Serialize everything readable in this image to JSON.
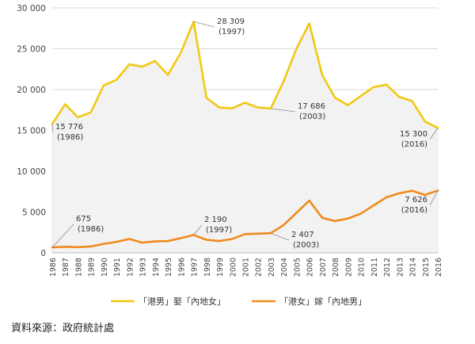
{
  "chart_data": {
    "type": "line",
    "x": [
      "1986",
      "1987",
      "1988",
      "1989",
      "1990",
      "1991",
      "1992",
      "1993",
      "1994",
      "1995",
      "1996",
      "1997",
      "1998",
      "1999",
      "2000",
      "2001",
      "2002",
      "2003",
      "2004",
      "2005",
      "2006",
      "2007",
      "2008",
      "2009",
      "2010",
      "2011",
      "2012",
      "2013",
      "2014",
      "2015",
      "2016"
    ],
    "ylim": [
      0,
      30000
    ],
    "yticks": [
      0,
      5000,
      10000,
      15000,
      20000,
      25000,
      30000
    ],
    "ytick_labels": [
      "0",
      "5 000",
      "10 000",
      "15 000",
      "20 000",
      "25 000",
      "30 000"
    ],
    "grid": true,
    "legend_position": "bottom",
    "series": [
      {
        "name": "「港男」娶「內地女」",
        "color": "#f2c811",
        "values": [
          15776,
          18200,
          16600,
          17200,
          20500,
          21200,
          23100,
          22800,
          23500,
          21800,
          24500,
          28309,
          19000,
          17800,
          17700,
          18400,
          17800,
          17686,
          21000,
          25000,
          28100,
          21800,
          19000,
          18100,
          19200,
          20300,
          20600,
          19100,
          18600,
          16100,
          15300
        ]
      },
      {
        "name": "「港女」嫁「內地男」",
        "color": "#ef8a1e",
        "values": [
          675,
          750,
          700,
          780,
          1100,
          1350,
          1700,
          1250,
          1400,
          1450,
          1800,
          2190,
          1600,
          1450,
          1700,
          2300,
          2350,
          2407,
          3400,
          4900,
          6400,
          4300,
          3900,
          4200,
          4800,
          5800,
          6800,
          7300,
          7600,
          7100,
          7626
        ]
      }
    ],
    "annotations": [
      {
        "series": 0,
        "index": 0,
        "line1": "15 776",
        "line2": "(1986)"
      },
      {
        "series": 0,
        "index": 11,
        "line1": "28 309",
        "line2": "(1997)"
      },
      {
        "series": 0,
        "index": 17,
        "line1": "17 686",
        "line2": "(2003)"
      },
      {
        "series": 0,
        "index": 30,
        "line1": "15 300",
        "line2": "(2016)"
      },
      {
        "series": 1,
        "index": 0,
        "line1": "675",
        "line2": "(1986)"
      },
      {
        "series": 1,
        "index": 11,
        "line1": "2 190",
        "line2": "(1997)"
      },
      {
        "series": 1,
        "index": 17,
        "line1": "2 407",
        "line2": "(2003)"
      },
      {
        "series": 1,
        "index": 30,
        "line1": "7 626",
        "line2": "(2016)"
      }
    ]
  },
  "source_text": "資料來源：政府統計處"
}
